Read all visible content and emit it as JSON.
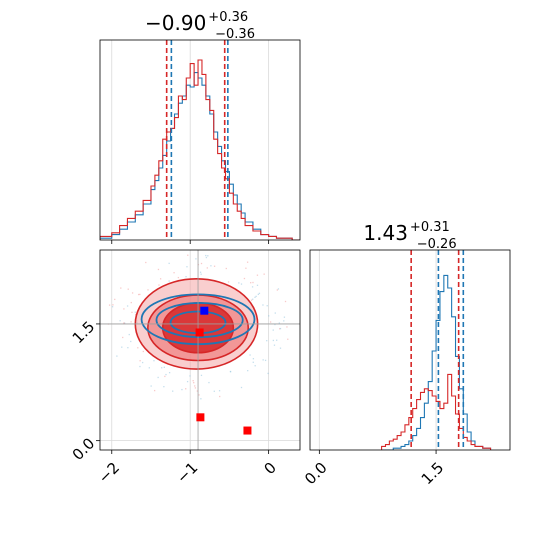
{
  "chart_data": {
    "type": "corner",
    "colors": {
      "series_a": "#1f77b4",
      "series_b": "#d62728",
      "marker_blue": "#0000ff",
      "marker_red": "#ff0000",
      "grid": "#d9d9d9"
    },
    "grid": true,
    "param1": {
      "title": {
        "base": "−0.90",
        "sup": "+0.36",
        "sub": "−0.36"
      },
      "xlim": [
        -2.15,
        0.4
      ],
      "ticks": [
        -2,
        -1,
        0
      ],
      "tick_labels": [
        "−2",
        "−1",
        "0"
      ],
      "hist_x": [
        -2.15,
        -2.0,
        -1.9,
        -1.8,
        -1.7,
        -1.6,
        -1.5,
        -1.45,
        -1.4,
        -1.35,
        -1.3,
        -1.25,
        -1.2,
        -1.15,
        -1.1,
        -1.05,
        -1.0,
        -0.95,
        -0.9,
        -0.85,
        -0.8,
        -0.75,
        -0.7,
        -0.65,
        -0.6,
        -0.55,
        -0.5,
        -0.45,
        -0.4,
        -0.35,
        -0.3,
        -0.2,
        -0.1,
        0.0,
        0.1,
        0.2,
        0.3,
        0.4
      ],
      "series": [
        {
          "name": "",
          "color": "#1f77b4",
          "values": [
            0.01,
            0.03,
            0.06,
            0.1,
            0.14,
            0.2,
            0.28,
            0.33,
            0.4,
            0.47,
            0.55,
            0.62,
            0.7,
            0.76,
            0.8,
            0.86,
            0.85,
            0.93,
            0.9,
            0.86,
            0.8,
            0.7,
            0.6,
            0.52,
            0.44,
            0.38,
            0.31,
            0.25,
            0.2,
            0.15,
            0.1,
            0.06,
            0.03,
            0.02,
            0.01,
            0.01,
            0.0
          ]
        },
        {
          "name": "",
          "color": "#d62728",
          "values": [
            0.02,
            0.04,
            0.08,
            0.12,
            0.16,
            0.22,
            0.3,
            0.36,
            0.44,
            0.56,
            0.6,
            0.62,
            0.68,
            0.8,
            0.78,
            0.9,
            0.98,
            0.86,
            1.0,
            0.92,
            0.78,
            0.72,
            0.56,
            0.48,
            0.4,
            0.34,
            0.26,
            0.2,
            0.16,
            0.12,
            0.08,
            0.05,
            0.03,
            0.02,
            0.01,
            0.01,
            0.0
          ]
        }
      ],
      "quantiles": [
        {
          "color": "#d62728",
          "values": [
            -1.3,
            -0.56
          ]
        },
        {
          "color": "#1f77b4",
          "values": [
            -1.24,
            -0.52
          ]
        }
      ]
    },
    "param2": {
      "title": {
        "base": "1.43",
        "sup": "+0.31",
        "sub": "−0.26"
      },
      "xlim": [
        -0.12,
        2.45
      ],
      "ticks": [
        0.0,
        1.5
      ],
      "tick_labels": [
        "0.0",
        "1.5"
      ],
      "hist_x": [
        0.8,
        0.85,
        0.9,
        0.95,
        1.0,
        1.05,
        1.1,
        1.15,
        1.2,
        1.25,
        1.3,
        1.35,
        1.4,
        1.45,
        1.5,
        1.55,
        1.6,
        1.65,
        1.7,
        1.75,
        1.8,
        1.85,
        1.9,
        1.95,
        2.0,
        2.1,
        2.2
      ],
      "series": [
        {
          "name": "",
          "color": "#1f77b4",
          "values": [
            0.0,
            0.0,
            0.0,
            0.01,
            0.01,
            0.02,
            0.03,
            0.05,
            0.08,
            0.12,
            0.18,
            0.26,
            0.38,
            0.55,
            0.72,
            0.88,
            0.97,
            0.9,
            0.74,
            0.52,
            0.34,
            0.2,
            0.1,
            0.05,
            0.02,
            0.01
          ]
        },
        {
          "name": "",
          "color": "#d62728",
          "values": [
            0.02,
            0.03,
            0.05,
            0.06,
            0.08,
            0.1,
            0.14,
            0.18,
            0.23,
            0.28,
            0.32,
            0.34,
            0.33,
            0.3,
            0.27,
            0.23,
            0.26,
            0.42,
            0.3,
            0.2,
            0.12,
            0.07,
            0.05,
            0.03,
            0.02,
            0.01
          ]
        }
      ],
      "quantiles": [
        {
          "color": "#d62728",
          "values": [
            1.18,
            1.79
          ]
        },
        {
          "color": "#1f77b4",
          "values": [
            1.53,
            1.85
          ]
        }
      ]
    },
    "joint": {
      "xlim": [
        -2.15,
        0.4
      ],
      "ylim": [
        -0.12,
        2.45
      ],
      "xticks": [
        -2,
        -1,
        0
      ],
      "xtick_labels": [
        "−2",
        "−1",
        "0"
      ],
      "yticks": [
        0.0,
        1.5
      ],
      "ytick_labels": [
        "0.0",
        "1.5"
      ],
      "truth_lines": {
        "x": -0.9,
        "y": 1.5
      },
      "red_contours": [
        {
          "cx": -0.9,
          "cy": 1.45,
          "rx": 0.45,
          "ry": 0.32,
          "fill": "#d62728",
          "opacity": 0.85
        },
        {
          "cx": -0.9,
          "cy": 1.45,
          "rx": 0.64,
          "ry": 0.42,
          "fill": "#f08080",
          "opacity": 0.7
        },
        {
          "cx": -0.92,
          "cy": 1.5,
          "rx": 0.78,
          "ry": 0.58,
          "fill": "#f4a6a6",
          "opacity": 0.55
        }
      ],
      "blue_contours": [
        {
          "cx": -0.9,
          "cy": 1.52,
          "rx": 0.35,
          "ry": 0.14
        },
        {
          "cx": -0.88,
          "cy": 1.55,
          "rx": 0.55,
          "ry": 0.22
        },
        {
          "cx": -0.9,
          "cy": 1.56,
          "rx": 0.72,
          "ry": 0.32
        }
      ],
      "markers": [
        {
          "color": "#0000ff",
          "x": -0.82,
          "y": 1.67
        },
        {
          "color": "#ff0000",
          "x": -0.88,
          "y": 1.39
        },
        {
          "color": "#ff0000",
          "x": -0.87,
          "y": 0.3
        },
        {
          "color": "#ff0000",
          "x": -0.27,
          "y": 0.13
        }
      ]
    }
  }
}
